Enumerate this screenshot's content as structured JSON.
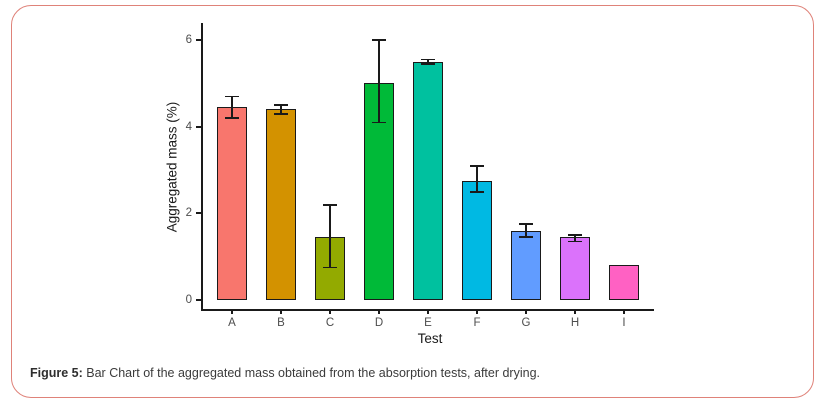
{
  "figure": {
    "caption_label": "Figure 5:",
    "caption_text": " Bar Chart of the aggregated mass obtained from the absorption tests, after drying.",
    "border_color": "#df8279"
  },
  "chart_data": {
    "type": "bar",
    "title": "",
    "xlabel": "Test",
    "ylabel": "Aggregated mass (%)",
    "categories": [
      "A",
      "B",
      "C",
      "D",
      "E",
      "F",
      "G",
      "H",
      "I"
    ],
    "values": [
      4.45,
      4.4,
      1.45,
      5.0,
      5.5,
      2.75,
      1.6,
      1.45,
      0.8
    ],
    "error_bars": [
      [
        4.2,
        4.7
      ],
      [
        4.3,
        4.5
      ],
      [
        0.75,
        2.2
      ],
      [
        4.1,
        6.0
      ],
      [
        5.45,
        5.55
      ],
      [
        2.5,
        3.1
      ],
      [
        1.45,
        1.75
      ],
      [
        1.35,
        1.5
      ],
      null
    ],
    "bar_colors": [
      "#F8766D",
      "#D39200",
      "#93AA00",
      "#00BA38",
      "#00C19F",
      "#00B9E3",
      "#619CFF",
      "#DB72FB",
      "#FF61C3"
    ],
    "yticks": [
      0,
      2,
      4,
      6
    ],
    "ylim": [
      0,
      6.25
    ],
    "grid": false,
    "legend": null,
    "bar_outline_color": "#1a1a1a",
    "axis_color": "#1a1a1a",
    "tick_label_color": "#4d4d4d"
  }
}
